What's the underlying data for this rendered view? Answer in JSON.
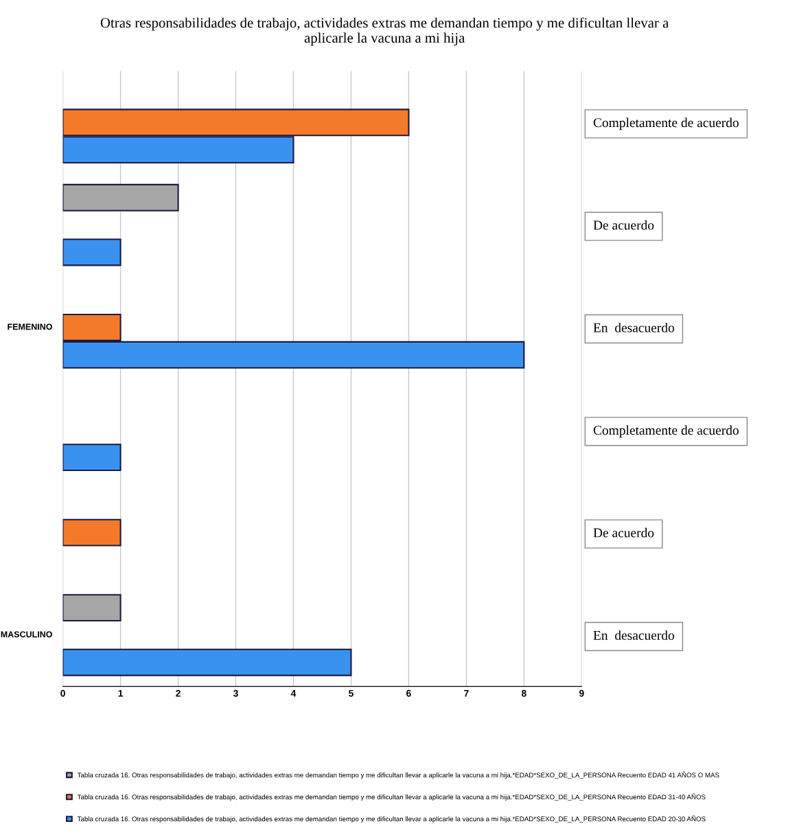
{
  "chart_data": {
    "type": "bar",
    "orientation": "horizontal",
    "title": "Otras responsabilidades de trabajo, actividades extras me demandan tiempo y me dificultan llevar a\naplicarle la vacuna a mi hija",
    "categories": [
      "Completamente de acuerdo",
      "De acuerdo",
      "En  desacuerdo",
      "Completamente de acuerdo",
      "De acuerdo",
      "En  desacuerdo"
    ],
    "annotations": [
      "FEMENINO",
      "MASCULINO"
    ],
    "series": [
      {
        "name": "Tabla cruzada 16. Otras responsabilidades de trabajo, actividades extras me demandan tiempo y me dificultan llevar a aplicarle la vacuna a mi hija.*EDAD*SEXO_DE_LA_PERSONA Recuento EDAD 41 AÑOS O MAS",
        "color": "#a6a6a6",
        "values": [
          null,
          2,
          null,
          null,
          null,
          1
        ]
      },
      {
        "name": "Tabla cruzada 16. Otras responsabilidades de trabajo, actividades extras me demandan tiempo y me dificultan llevar a aplicarle la vacuna a mi hija.*EDAD*SEXO_DE_LA_PERSONA Recuento EDAD 31-40 AÑOS",
        "color": "#f47a2a",
        "values": [
          6,
          null,
          1,
          null,
          1,
          null
        ]
      },
      {
        "name": "Tabla cruzada 16. Otras responsabilidades de trabajo, actividades extras me demandan tiempo y me dificultan llevar a aplicarle la vacuna a mi hija.*EDAD*SEXO_DE_LA_PERSONA Recuento EDAD 20-30 AÑOS",
        "color": "#3a92f0",
        "values": [
          4,
          1,
          8,
          1,
          null,
          5
        ]
      }
    ],
    "xlim": [
      0,
      9
    ],
    "xticks": [
      0,
      1,
      2,
      3,
      4,
      5,
      6,
      7,
      8,
      9
    ],
    "grid": "x",
    "legend": "bottom"
  }
}
